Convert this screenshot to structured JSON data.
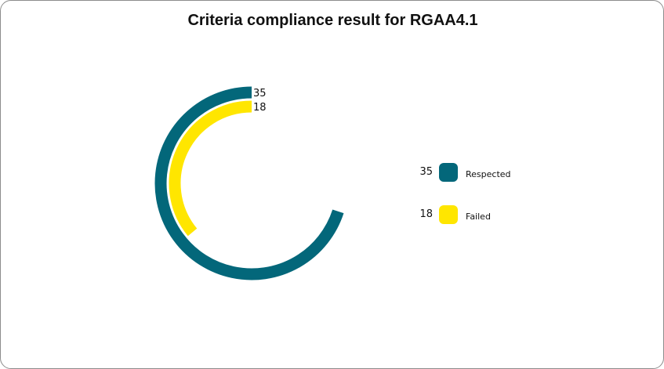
{
  "chart_data": {
    "type": "radial-bar",
    "title": "Criteria compliance result for RGAA4.1",
    "max": 50,
    "series": [
      {
        "name": "Respected",
        "value": 35,
        "color": "#03677a"
      },
      {
        "name": "Failed",
        "value": 18,
        "color": "#ffe600"
      }
    ],
    "legend_position": "right"
  }
}
